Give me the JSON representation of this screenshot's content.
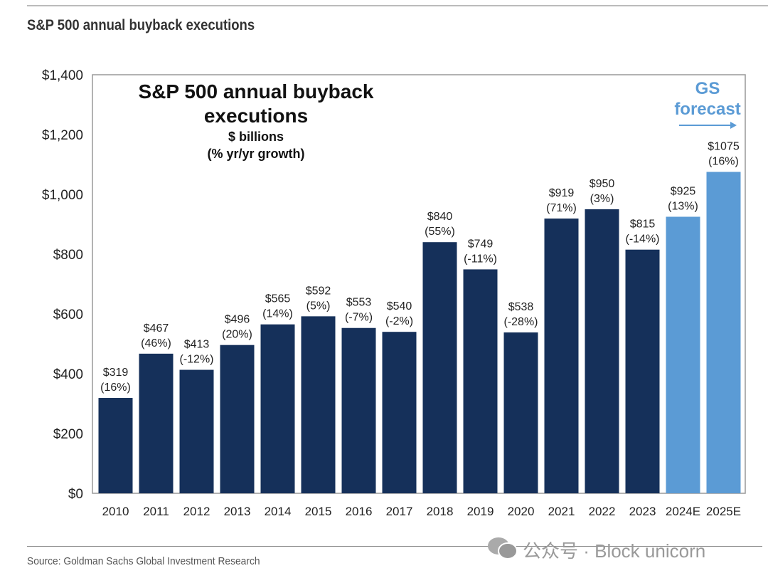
{
  "title": "S&P 500 annual buyback executions",
  "source": "Source: Goldman Sachs Global Investment Research",
  "watermark": "公众号 · Block unicorn",
  "colors": {
    "actual": "#15305a",
    "forecast": "#5b9bd5"
  },
  "chart_data": {
    "type": "bar",
    "title": "S&P 500 annual buyback executions",
    "subtitle": "$ billions",
    "subtitle2": "(% yr/yr growth)",
    "annotation": "GS forecast",
    "annotation_lines": [
      "GS",
      "forecast"
    ],
    "ylabel": "$ billions",
    "ylim": [
      0,
      1400
    ],
    "yticks": [
      0,
      200,
      400,
      600,
      800,
      1000,
      1200,
      1400
    ],
    "ytick_labels": [
      "$0",
      "$200",
      "$400",
      "$600",
      "$800",
      "$1,000",
      "$1,200",
      "$1,400"
    ],
    "categories": [
      "2010",
      "2011",
      "2012",
      "2013",
      "2014",
      "2015",
      "2016",
      "2017",
      "2018",
      "2019",
      "2020",
      "2021",
      "2022",
      "2023",
      "2024E",
      "2025E"
    ],
    "values": [
      319,
      467,
      413,
      496,
      565,
      592,
      553,
      540,
      840,
      749,
      538,
      919,
      950,
      815,
      925,
      1075
    ],
    "value_labels": [
      "$319",
      "$467",
      "$413",
      "$496",
      "$565",
      "$592",
      "$553",
      "$540",
      "$840",
      "$749",
      "$538",
      "$919",
      "$950",
      "$815",
      "$925",
      "$1075"
    ],
    "growth_labels": [
      "(16%)",
      "(46%)",
      "(-12%)",
      "(20%)",
      "(14%)",
      "(5%)",
      "(-7%)",
      "(-2%)",
      "(55%)",
      "(-11%)",
      "(-28%)",
      "(71%)",
      "(3%)",
      "(-14%)",
      "(13%)",
      "(16%)"
    ],
    "forecast": [
      false,
      false,
      false,
      false,
      false,
      false,
      false,
      false,
      false,
      false,
      false,
      false,
      false,
      false,
      true,
      true
    ]
  }
}
